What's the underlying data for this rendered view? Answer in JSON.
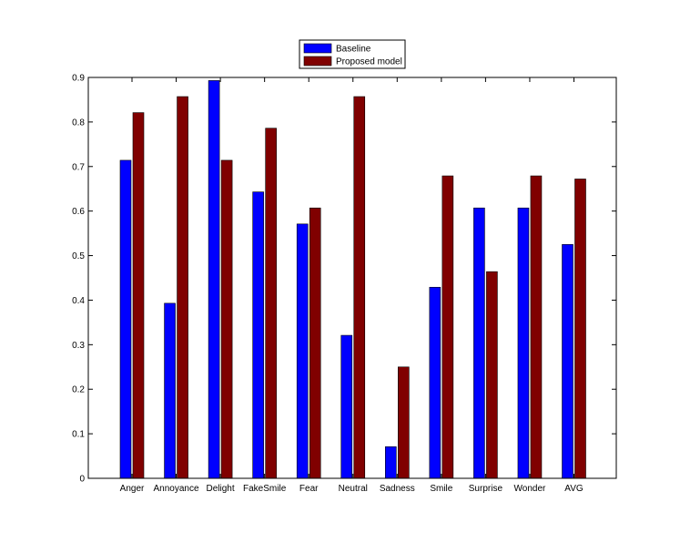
{
  "chart_data": {
    "type": "bar",
    "title": "",
    "xlabel": "",
    "ylabel": "",
    "ylim": [
      0,
      0.9
    ],
    "yticks": [
      0,
      0.1,
      0.2,
      0.3,
      0.4,
      0.5,
      0.6,
      0.7,
      0.8,
      0.9
    ],
    "ytick_labels": [
      "0",
      "0.1",
      "0.2",
      "0.3",
      "0.4",
      "0.5",
      "0.6",
      "0.7",
      "0.8",
      "0.9"
    ],
    "categories": [
      "Anger",
      "Annoyance",
      "Delight",
      "FakeSmile",
      "Fear",
      "Neutral",
      "Sadness",
      "Smile",
      "Surprise",
      "Wonder",
      "AVG"
    ],
    "series": [
      {
        "name": "Baseline",
        "color": "#0000ff",
        "values": [
          0.714,
          0.393,
          0.893,
          0.643,
          0.571,
          0.321,
          0.071,
          0.429,
          0.607,
          0.607,
          0.525
        ]
      },
      {
        "name": "Proposed model",
        "color": "#800000",
        "values": [
          0.821,
          0.857,
          0.714,
          0.786,
          0.607,
          0.857,
          0.25,
          0.679,
          0.464,
          0.679,
          0.672
        ]
      }
    ],
    "legend_position": "top-center",
    "grid": false
  }
}
